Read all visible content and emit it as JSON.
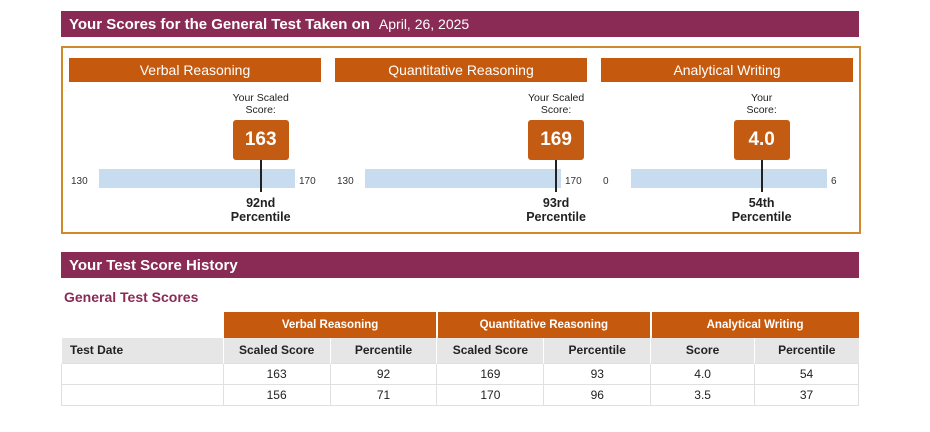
{
  "header": {
    "title": "Your Scores for the General Test Taken on",
    "test_date": "April, 26, 2025"
  },
  "sections": [
    {
      "name": "Verbal Reasoning",
      "score_label_1": "Your Scaled",
      "score_label_2": "Score:",
      "score": "163",
      "score_value": 163,
      "min": "130",
      "max": "170",
      "min_value": 130,
      "max_value": 170,
      "percentile_rank": "92nd",
      "percentile_label": "Percentile"
    },
    {
      "name": "Quantitative Reasoning",
      "score_label_1": "Your Scaled",
      "score_label_2": "Score:",
      "score": "169",
      "score_value": 169,
      "min": "130",
      "max": "170",
      "min_value": 130,
      "max_value": 170,
      "percentile_rank": "93rd",
      "percentile_label": "Percentile"
    },
    {
      "name": "Analytical Writing",
      "score_label_1": "Your",
      "score_label_2": "Score:",
      "score": "4.0",
      "score_value": 4.0,
      "min": "0",
      "max": "6",
      "min_value": 0,
      "max_value": 6,
      "percentile_rank": "54th",
      "percentile_label": "Percentile"
    }
  ],
  "history": {
    "title": "Your Test Score History",
    "subtitle": "General Test Scores",
    "groups": [
      "Verbal Reasoning",
      "Quantitative Reasoning",
      "Analytical Writing"
    ],
    "columns": [
      "Test Date",
      "Scaled Score",
      "Percentile",
      "Scaled Score",
      "Percentile",
      "Score",
      "Percentile"
    ],
    "rows": [
      [
        "",
        "163",
        "92",
        "169",
        "93",
        "4.0",
        "54"
      ],
      [
        "",
        "156",
        "71",
        "170",
        "96",
        "3.5",
        "37"
      ]
    ]
  },
  "colors": {
    "banner": "#8a2b55",
    "accent": "#c55a0e",
    "bar": "#c8dcf0",
    "box_border": "#d08a2c"
  }
}
